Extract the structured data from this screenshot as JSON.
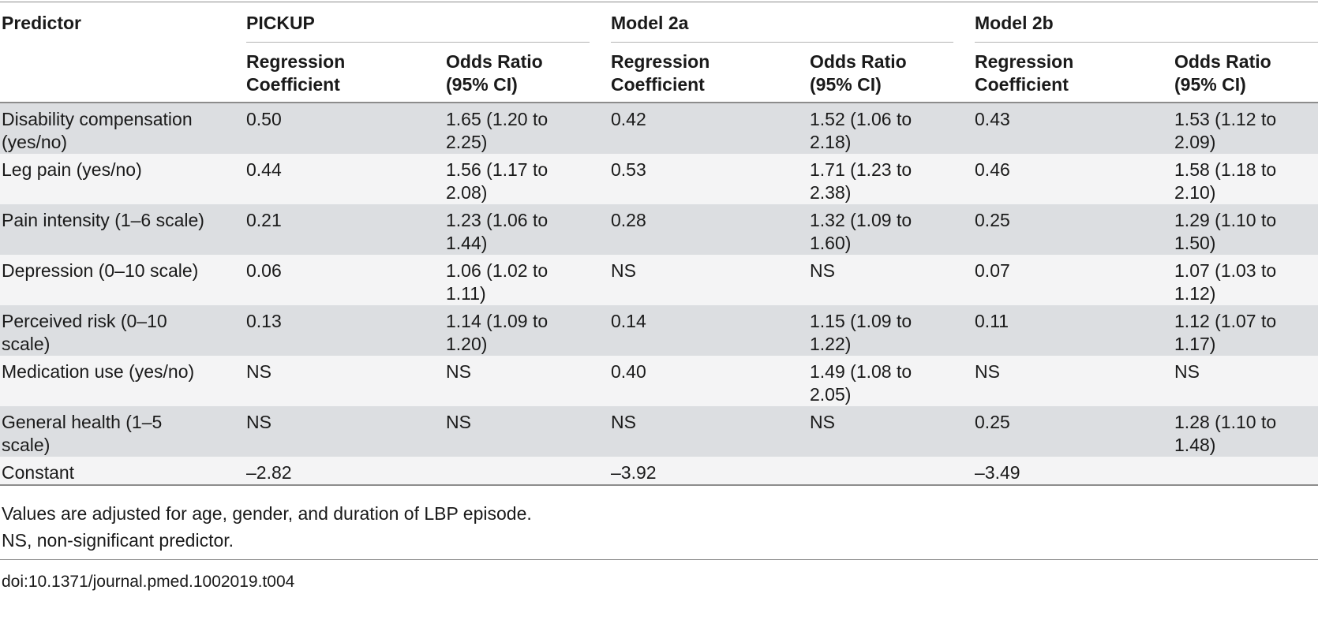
{
  "table": {
    "header": {
      "predictor": "Predictor",
      "groups": [
        "PICKUP",
        "Model 2a",
        "Model 2b"
      ],
      "sub_coef": [
        "Regression",
        "Coefficient"
      ],
      "sub_or": [
        "Odds Ratio",
        "(95% CI)"
      ]
    },
    "rows": [
      {
        "predictor": [
          "Disability compensation",
          "(yes/no)"
        ],
        "cells": [
          [
            "0.50"
          ],
          [
            "1.65 (1.20 to",
            "2.25)"
          ],
          [
            "0.42"
          ],
          [
            "1.52 (1.06 to",
            "2.18)"
          ],
          [
            "0.43"
          ],
          [
            "1.53 (1.12 to",
            "2.09)"
          ]
        ]
      },
      {
        "predictor": [
          "Leg pain (yes/no)"
        ],
        "cells": [
          [
            "0.44"
          ],
          [
            "1.56 (1.17 to",
            "2.08)"
          ],
          [
            "0.53"
          ],
          [
            "1.71 (1.23 to",
            "2.38)"
          ],
          [
            "0.46"
          ],
          [
            "1.58 (1.18 to",
            "2.10)"
          ]
        ]
      },
      {
        "predictor": [
          "Pain intensity (1–6 scale)"
        ],
        "cells": [
          [
            "0.21"
          ],
          [
            "1.23 (1.06 to",
            "1.44)"
          ],
          [
            "0.28"
          ],
          [
            "1.32 (1.09 to",
            "1.60)"
          ],
          [
            "0.25"
          ],
          [
            "1.29 (1.10 to",
            "1.50)"
          ]
        ]
      },
      {
        "predictor": [
          "Depression (0–10 scale)"
        ],
        "cells": [
          [
            "0.06"
          ],
          [
            "1.06 (1.02 to",
            "1.11)"
          ],
          [
            "NS"
          ],
          [
            "NS"
          ],
          [
            "0.07"
          ],
          [
            "1.07 (1.03 to",
            "1.12)"
          ]
        ]
      },
      {
        "predictor": [
          "Perceived risk (0–10",
          "scale)"
        ],
        "cells": [
          [
            "0.13"
          ],
          [
            "1.14 (1.09 to",
            "1.20)"
          ],
          [
            "0.14"
          ],
          [
            "1.15 (1.09 to",
            "1.22)"
          ],
          [
            "0.11"
          ],
          [
            "1.12 (1.07 to",
            "1.17)"
          ]
        ]
      },
      {
        "predictor": [
          "Medication use (yes/no)"
        ],
        "cells": [
          [
            "NS"
          ],
          [
            "NS"
          ],
          [
            "0.40"
          ],
          [
            "1.49 (1.08 to",
            "2.05)"
          ],
          [
            "NS"
          ],
          [
            "NS"
          ]
        ]
      },
      {
        "predictor": [
          "General health (1–5",
          "scale)"
        ],
        "cells": [
          [
            "NS"
          ],
          [
            "NS"
          ],
          [
            "NS"
          ],
          [
            "NS"
          ],
          [
            "0.25"
          ],
          [
            "1.28 (1.10 to",
            "1.48)"
          ]
        ]
      },
      {
        "predictor": [
          "Constant"
        ],
        "cells": [
          [
            "–2.82"
          ],
          [],
          [
            "–3.92"
          ],
          [],
          [
            "–3.49"
          ],
          []
        ]
      }
    ]
  },
  "notes": [
    "Values are adjusted for age, gender, and duration of LBP episode.",
    "NS, non-significant predictor."
  ],
  "doi": "doi:10.1371/journal.pmed.1002019.t004"
}
